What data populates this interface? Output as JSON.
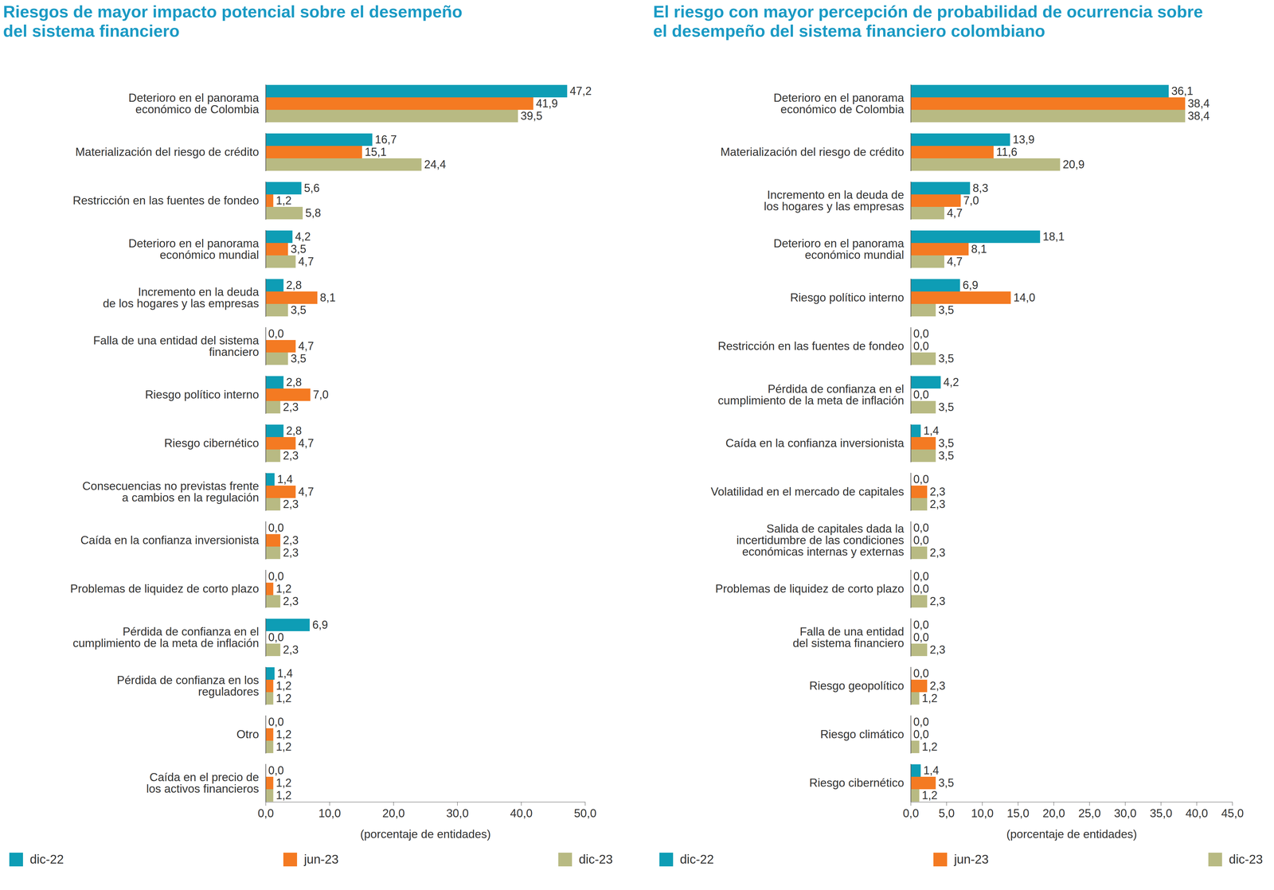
{
  "chart_data": [
    {
      "type": "bar",
      "orientation": "horizontal",
      "data_labels": true,
      "grid": false,
      "legend": "bottom",
      "title": "Riesgos de mayor impacto potencial sobre el desempeño del sistema financiero",
      "xlabel": "(porcentaje de entidades)",
      "categories": [
        "Deterioro en el panorama\neconómico de Colombia",
        "Materialización del riesgo de crédito",
        "Restricción en las fuentes de fondeo",
        "Deterioro en el panorama\neconómico mundial",
        "Incremento en la deuda\nde los hogares y las empresas",
        "Falla de una entidad del sistema\nfinanciero",
        "Riesgo político interno",
        "Riesgo cibernético",
        "Consecuencias no previstas frente\na cambios en la regulación",
        "Caída en la confianza inversionista",
        "Problemas de liquidez de corto plazo",
        "Pérdida de confianza en el\ncumplimiento de la meta de inflación",
        "Pérdida de confianza en los\nreguladores",
        "Otro",
        "Caída en el precio de\nlos activos financieros"
      ],
      "series": [
        {
          "name": "dic-22",
          "color": "#0e9db5",
          "values": [
            47.2,
            16.7,
            5.6,
            4.2,
            2.8,
            0.0,
            2.8,
            2.8,
            1.4,
            0.0,
            0.0,
            6.9,
            1.4,
            0.0,
            0.0
          ],
          "value_labels": [
            "47,2",
            "16,7",
            "5,6",
            "4,2",
            "2,8",
            "0,0",
            "2,8",
            "2,8",
            "1,4",
            "0,0",
            "0,0",
            "6,9",
            "1,4",
            "0,0",
            "0,0"
          ]
        },
        {
          "name": "jun-23",
          "color": "#f47a22",
          "values": [
            41.9,
            15.1,
            1.2,
            3.5,
            8.1,
            4.7,
            7.0,
            4.7,
            4.7,
            2.3,
            1.2,
            0.0,
            1.2,
            1.2,
            1.2
          ],
          "value_labels": [
            "41,9",
            "15,1",
            "1,2",
            "3,5",
            "8,1",
            "4,7",
            "7,0",
            "4,7",
            "4,7",
            "2,3",
            "1,2",
            "0,0",
            "1,2",
            "1,2",
            "1,2"
          ]
        },
        {
          "name": "dic-23",
          "color": "#b8ba83",
          "values": [
            39.5,
            24.4,
            5.8,
            4.7,
            3.5,
            3.5,
            2.3,
            2.3,
            2.3,
            2.3,
            2.3,
            2.3,
            1.2,
            1.2,
            1.2
          ],
          "value_labels": [
            "39,5",
            "24,4",
            "5,8",
            "4,7",
            "3,5",
            "3,5",
            "2,3",
            "2,3",
            "2,3",
            "2,3",
            "2,3",
            "2,3",
            "1,2",
            "1,2",
            "1,2"
          ]
        }
      ],
      "xlim": [
        0,
        50
      ],
      "xticks": [
        {
          "value": 0,
          "label": "0,0"
        },
        {
          "value": 10,
          "label": "10,0"
        },
        {
          "value": 20,
          "label": "20,0"
        },
        {
          "value": 30,
          "label": "30,0"
        },
        {
          "value": 40,
          "label": "40,0"
        },
        {
          "value": 50,
          "label": "50,0"
        }
      ]
    },
    {
      "type": "bar",
      "orientation": "horizontal",
      "data_labels": true,
      "grid": false,
      "legend": "bottom",
      "title": "El riesgo con mayor percepción de probabilidad de ocurrencia sobre el desempeño del sistema financiero colombiano",
      "xlabel": "(porcentaje de entidades)",
      "categories": [
        "Deterioro en el panorama\neconómico de Colombia",
        "Materialización del riesgo de crédito",
        "Incremento en la deuda de\nlos hogares y las empresas",
        "Deterioro en el panorama\neconómico mundial",
        "Riesgo político interno",
        "Restricción en las fuentes de fondeo",
        "Pérdida de confianza en el\ncumplimiento de la meta de inflación",
        "Caída en la confianza inversionista",
        "Volatilidad en el mercado de capitales",
        "Salida de capitales dada la\nincertidumbre de las condiciones\neconómicas internas y externas",
        "Problemas de liquidez de corto plazo",
        "Falla de una entidad\ndel sistema financiero",
        "Riesgo geopolítico",
        "Riesgo climático",
        "Riesgo cibernético"
      ],
      "series": [
        {
          "name": "dic-22",
          "color": "#0e9db5",
          "values": [
            36.1,
            13.9,
            8.3,
            18.1,
            6.9,
            0.0,
            4.2,
            1.4,
            0.0,
            0.0,
            0.0,
            0.0,
            0.0,
            0.0,
            1.4
          ],
          "value_labels": [
            "36,1",
            "13,9",
            "8,3",
            "18,1",
            "6,9",
            "0,0",
            "4,2",
            "1,4",
            "0,0",
            "0,0",
            "0,0",
            "0,0",
            "0,0",
            "0,0",
            "1,4"
          ]
        },
        {
          "name": "jun-23",
          "color": "#f47a22",
          "values": [
            38.4,
            11.6,
            7.0,
            8.1,
            14.0,
            0.0,
            0.0,
            3.5,
            2.3,
            0.0,
            0.0,
            0.0,
            2.3,
            0.0,
            3.5
          ],
          "value_labels": [
            "38,4",
            "11,6",
            "7,0",
            "8,1",
            "14,0",
            "0,0",
            "0,0",
            "3,5",
            "2,3",
            "0,0",
            "0,0",
            "0,0",
            "2,3",
            "0,0",
            "3,5"
          ]
        },
        {
          "name": "dic-23",
          "color": "#b8ba83",
          "values": [
            38.4,
            20.9,
            4.7,
            4.7,
            3.5,
            3.5,
            3.5,
            3.5,
            2.3,
            2.3,
            2.3,
            2.3,
            1.2,
            1.2,
            1.2
          ],
          "value_labels": [
            "38,4",
            "20,9",
            "4,7",
            "4,7",
            "3,5",
            "3,5",
            "3,5",
            "3,5",
            "2,3",
            "2,3",
            "2,3",
            "2,3",
            "1,2",
            "1,2",
            "1,2"
          ]
        }
      ],
      "xlim": [
        0,
        45
      ],
      "xticks": [
        {
          "value": 0,
          "label": "0,0"
        },
        {
          "value": 5,
          "label": "5,0"
        },
        {
          "value": 10,
          "label": "10,0"
        },
        {
          "value": 15,
          "label": "15,0"
        },
        {
          "value": 20,
          "label": "20,0"
        },
        {
          "value": 25,
          "label": "25,0"
        },
        {
          "value": 30,
          "label": "30,0"
        },
        {
          "value": 35,
          "label": "35,0"
        },
        {
          "value": 40,
          "label": "40,0"
        },
        {
          "value": 45,
          "label": "45,0"
        }
      ]
    }
  ]
}
